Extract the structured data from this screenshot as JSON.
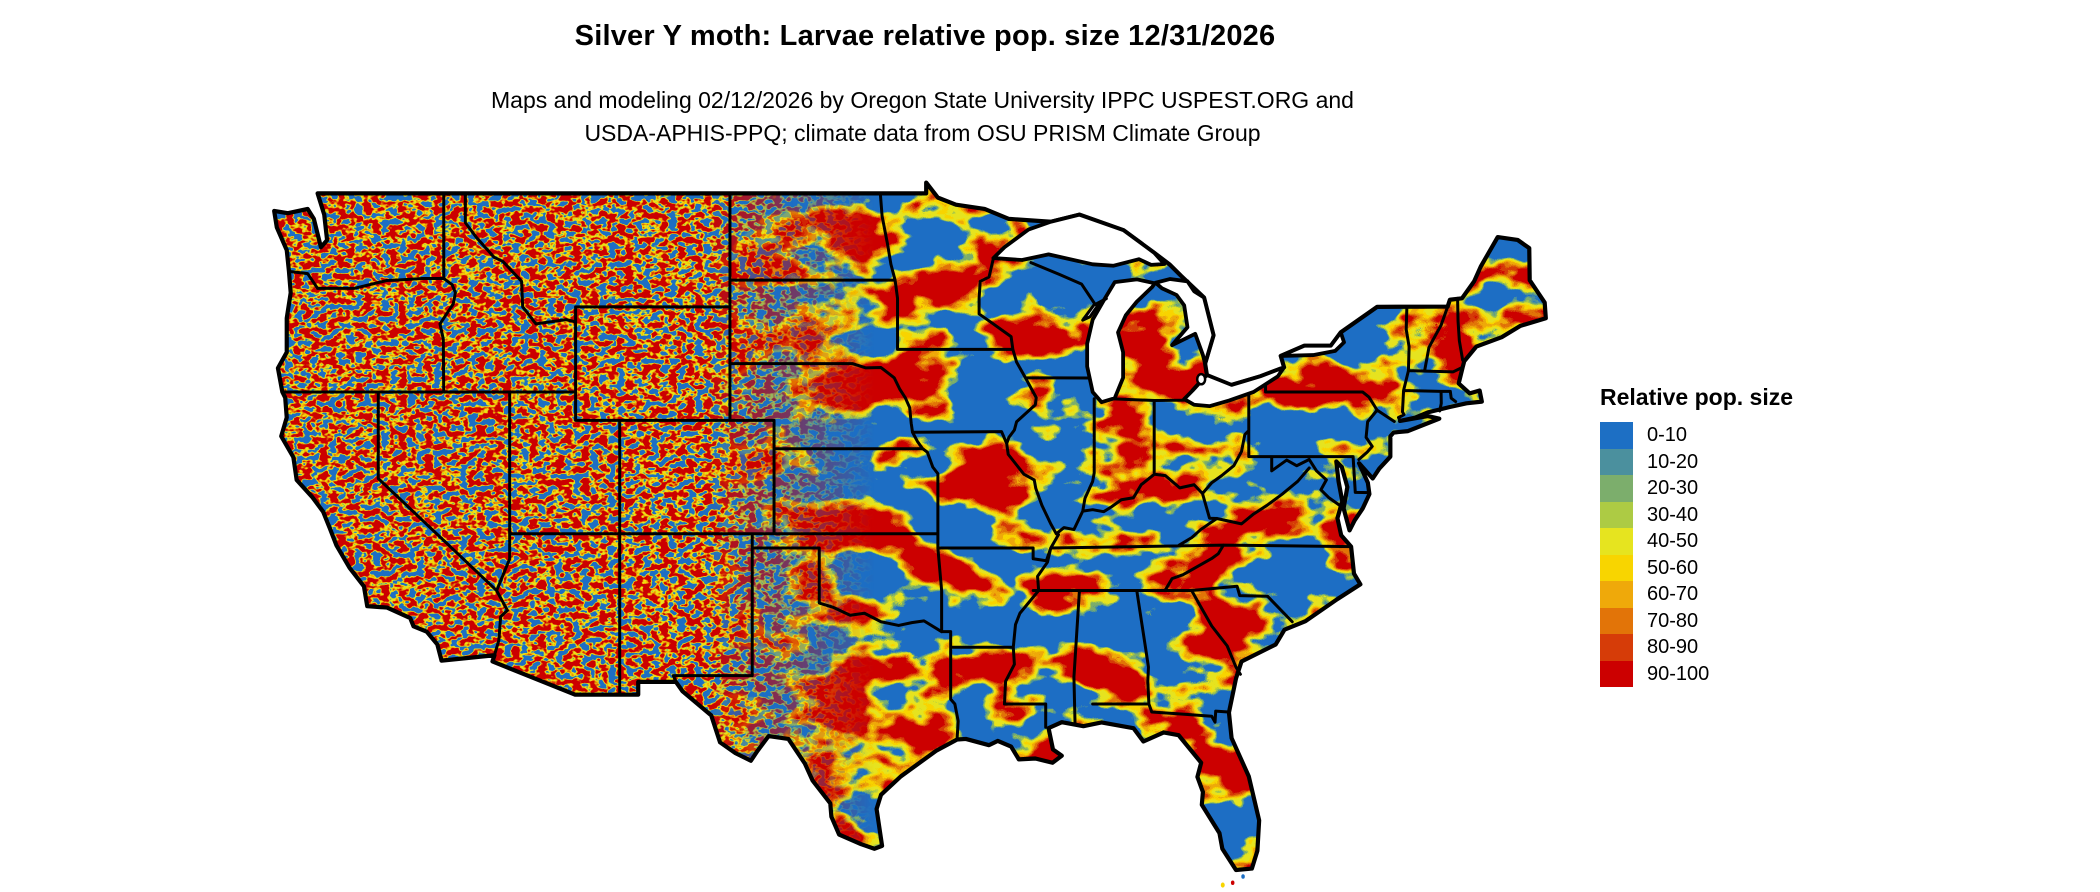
{
  "header": {
    "title": "Silver Y moth: Larvae relative pop. size 12/31/2026",
    "subtitle_line1": "Maps and modeling 02/12/2026 by Oregon State University IPPC USPEST.ORG and",
    "subtitle_line2": "USDA-APHIS-PPQ; climate data from OSU PRISM Climate Group"
  },
  "legend": {
    "title": "Relative pop. size",
    "entries": [
      {
        "label": "0-10",
        "color": "#1d6fc4"
      },
      {
        "label": "10-20",
        "color": "#4b909e"
      },
      {
        "label": "20-30",
        "color": "#7cae6c"
      },
      {
        "label": "30-40",
        "color": "#adcb44"
      },
      {
        "label": "40-50",
        "color": "#e6e41f"
      },
      {
        "label": "50-60",
        "color": "#f8d500"
      },
      {
        "label": "60-70",
        "color": "#efa90a"
      },
      {
        "label": "70-80",
        "color": "#e27408"
      },
      {
        "label": "80-90",
        "color": "#d63c08"
      },
      {
        "label": "90-100",
        "color": "#cc0000"
      }
    ]
  },
  "map": {
    "description": "Raster map of the conterminous United States with state borders, colored by larvae relative population size class"
  }
}
